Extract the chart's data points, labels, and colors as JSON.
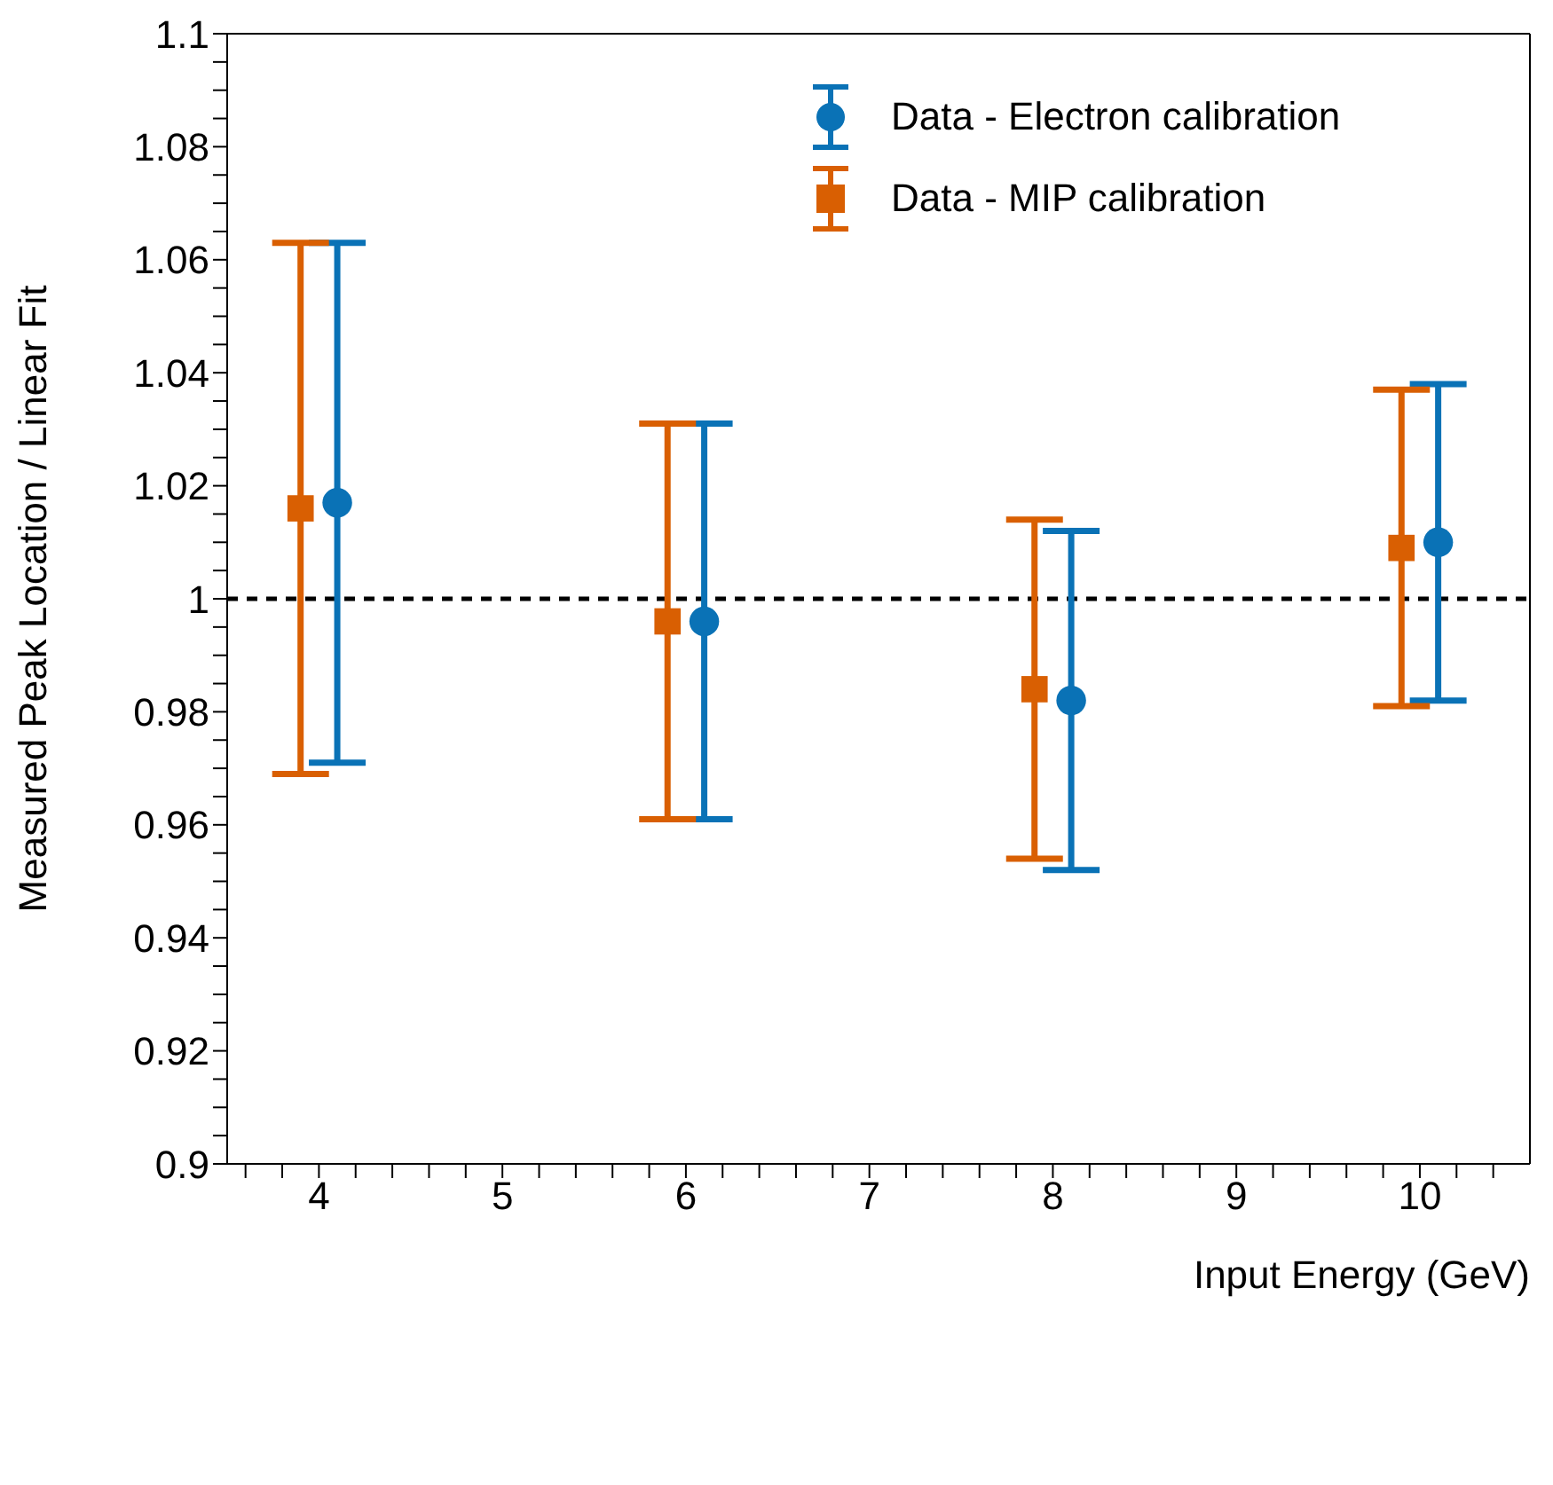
{
  "chart_data": {
    "type": "scatter",
    "xlabel": "Input Energy (GeV)",
    "ylabel": "Measured Peak Location / Linear Fit",
    "xlim": [
      3.5,
      10.6
    ],
    "xticks": [
      {
        "value": 3.6,
        "label": null
      },
      {
        "value": 3.8,
        "label": null
      },
      4,
      {
        "value": 4.2,
        "label": null
      },
      {
        "value": 4.4,
        "label": null
      },
      {
        "value": 4.6,
        "label": null
      },
      {
        "value": 4.8,
        "label": null
      },
      5,
      {
        "value": 5.2,
        "label": null
      },
      {
        "value": 5.4,
        "label": null
      },
      {
        "value": 5.6,
        "label": null
      },
      {
        "value": 5.8,
        "label": null
      },
      6,
      {
        "value": 6.2,
        "label": null
      },
      {
        "value": 6.4,
        "label": null
      },
      {
        "value": 6.6,
        "label": null
      },
      {
        "value": 6.8,
        "label": null
      },
      7,
      {
        "value": 7.2,
        "label": null
      },
      {
        "value": 7.4,
        "label": null
      },
      {
        "value": 7.6,
        "label": null
      },
      {
        "value": 7.8,
        "label": null
      },
      8,
      {
        "value": 8.2,
        "label": null
      },
      {
        "value": 8.4,
        "label": null
      },
      {
        "value": 8.6,
        "label": null
      },
      {
        "value": 8.8,
        "label": null
      },
      9,
      {
        "value": 9.2,
        "label": null
      },
      {
        "value": 9.4,
        "label": null
      },
      {
        "value": 9.6,
        "label": null
      },
      {
        "value": 9.8,
        "label": null
      },
      10,
      {
        "value": 10.2,
        "label": null
      },
      {
        "value": 10.4,
        "label": null
      }
    ],
    "ylim": [
      0.9,
      1.1
    ],
    "yticks": [
      0.9,
      {
        "value": 0.905,
        "label": null
      },
      {
        "value": 0.91,
        "label": null
      },
      {
        "value": 0.915,
        "label": null
      },
      0.92,
      {
        "value": 0.925,
        "label": null
      },
      {
        "value": 0.93,
        "label": null
      },
      {
        "value": 0.935,
        "label": null
      },
      0.94,
      {
        "value": 0.945,
        "label": null
      },
      {
        "value": 0.95,
        "label": null
      },
      {
        "value": 0.955,
        "label": null
      },
      0.96,
      {
        "value": 0.965,
        "label": null
      },
      {
        "value": 0.97,
        "label": null
      },
      {
        "value": 0.975,
        "label": null
      },
      0.98,
      {
        "value": 0.985,
        "label": null
      },
      {
        "value": 0.99,
        "label": null
      },
      {
        "value": 0.995,
        "label": null
      },
      1,
      {
        "value": 1.005,
        "label": null
      },
      {
        "value": 1.01,
        "label": null
      },
      {
        "value": 1.015,
        "label": null
      },
      1.02,
      {
        "value": 1.025,
        "label": null
      },
      {
        "value": 1.03,
        "label": null
      },
      {
        "value": 1.035,
        "label": null
      },
      1.04,
      {
        "value": 1.045,
        "label": null
      },
      {
        "value": 1.05,
        "label": null
      },
      {
        "value": 1.055,
        "label": null
      },
      1.06,
      {
        "value": 1.065,
        "label": null
      },
      {
        "value": 1.07,
        "label": null
      },
      {
        "value": 1.075,
        "label": null
      },
      1.08,
      {
        "value": 1.085,
        "label": null
      },
      {
        "value": 1.09,
        "label": null
      },
      {
        "value": 1.095,
        "label": null
      },
      1.1
    ],
    "series": [
      {
        "name": "Data - Electron calibration",
        "color": "#0a72b6",
        "marker": "circle",
        "x": [
          4.1,
          6.1,
          8.1,
          10.1
        ],
        "values": [
          1.017,
          0.996,
          0.982,
          1.01
        ],
        "errors": [
          0.046,
          0.035,
          0.03,
          0.028
        ]
      },
      {
        "name": "Data - MIP calibration",
        "color": "#d95f02",
        "marker": "square",
        "x": [
          3.9,
          5.9,
          7.9,
          9.9
        ],
        "values": [
          1.016,
          0.996,
          0.984,
          1.009
        ],
        "errors": [
          0.047,
          0.035,
          0.03,
          0.028
        ]
      }
    ],
    "ref_lines": [
      {
        "axis": "y",
        "value": 1,
        "label": null,
        "color": "#000000",
        "line_style": "dashed"
      }
    ],
    "legend": "top right"
  }
}
